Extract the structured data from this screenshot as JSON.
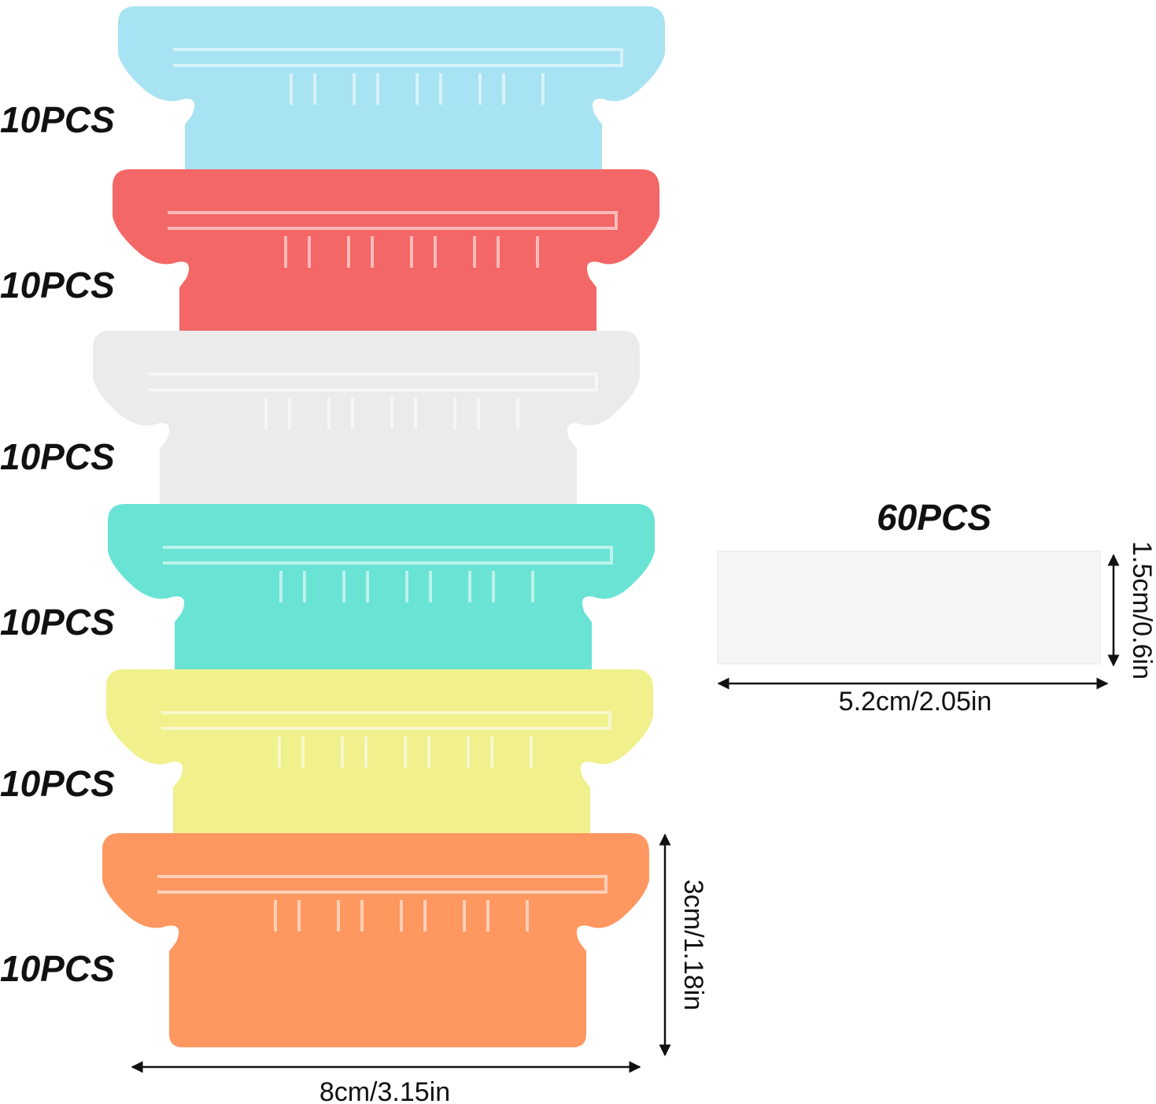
{
  "tabs": [
    {
      "label": "10PCS"
    },
    {
      "label": "10PCS"
    },
    {
      "label": "10PCS"
    },
    {
      "label": "10PCS"
    },
    {
      "label": "10PCS"
    },
    {
      "label": "10PCS"
    }
  ],
  "tab_dimensions": {
    "width": "8cm/3.15in",
    "height": "3cm/1.18in"
  },
  "insert": {
    "label": "60PCS",
    "width": "5.2cm/2.05in",
    "height": "1.5cm/0.6in"
  }
}
